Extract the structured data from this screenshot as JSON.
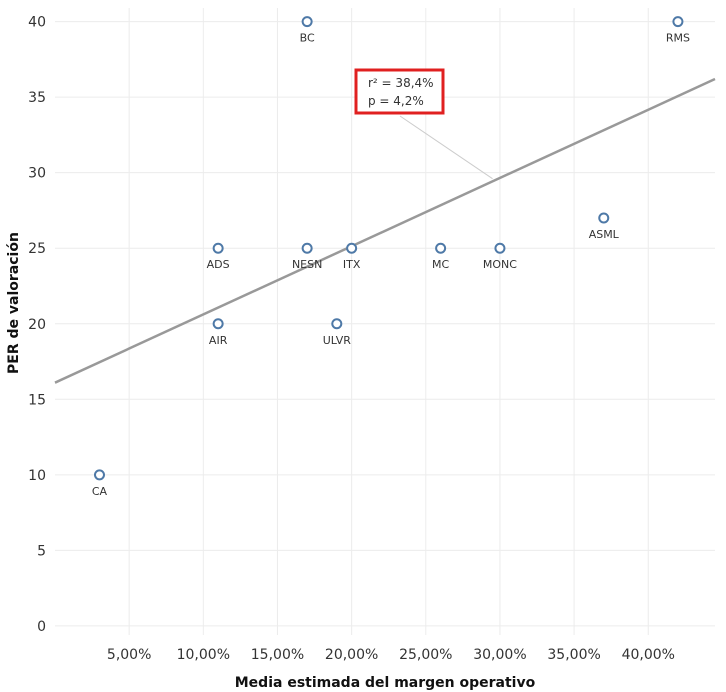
{
  "chart_data": {
    "type": "scatter",
    "xlabel": "Media estimada del margen operativo",
    "ylabel": "PER de valoración",
    "xlim": [
      0,
      44.5
    ],
    "ylim": [
      -0.6,
      40.9
    ],
    "x_ticks": [
      5,
      10,
      15,
      20,
      25,
      30,
      35,
      40
    ],
    "x_tick_labels": [
      "5,00%",
      "10,00%",
      "15,00%",
      "20,00%",
      "25,00%",
      "30,00%",
      "35,00%",
      "40,00%"
    ],
    "y_ticks": [
      0,
      5,
      10,
      15,
      20,
      25,
      30,
      35,
      40
    ],
    "y_tick_labels": [
      "0",
      "5",
      "10",
      "15",
      "20",
      "25",
      "30",
      "35",
      "40"
    ],
    "grid": true,
    "points": [
      {
        "label": "BC",
        "x": 17,
        "y": 40
      },
      {
        "label": "RMS",
        "x": 42,
        "y": 40
      },
      {
        "label": "ASML",
        "x": 37,
        "y": 27
      },
      {
        "label": "ADS",
        "x": 11,
        "y": 25
      },
      {
        "label": "NESN",
        "x": 17,
        "y": 25
      },
      {
        "label": "ITX",
        "x": 20,
        "y": 25
      },
      {
        "label": "MC",
        "x": 26,
        "y": 25
      },
      {
        "label": "MONC",
        "x": 30,
        "y": 25
      },
      {
        "label": "AIR",
        "x": 11,
        "y": 20
      },
      {
        "label": "ULVR",
        "x": 19,
        "y": 20
      },
      {
        "label": "CA",
        "x": 3,
        "y": 10
      }
    ],
    "trend_line": {
      "x0": 0,
      "y0": 16.1,
      "x1": 44.5,
      "y1": 36.2
    },
    "annotation": {
      "lines": [
        "r² = 38,4%",
        "p = 4,2%"
      ],
      "points_to": {
        "x": 29.5,
        "y": 29.6
      }
    },
    "colors": {
      "point_stroke": "#4e79a7",
      "trend": "#999999",
      "grid": "#ececec",
      "annotation_border": "#e02020"
    }
  }
}
